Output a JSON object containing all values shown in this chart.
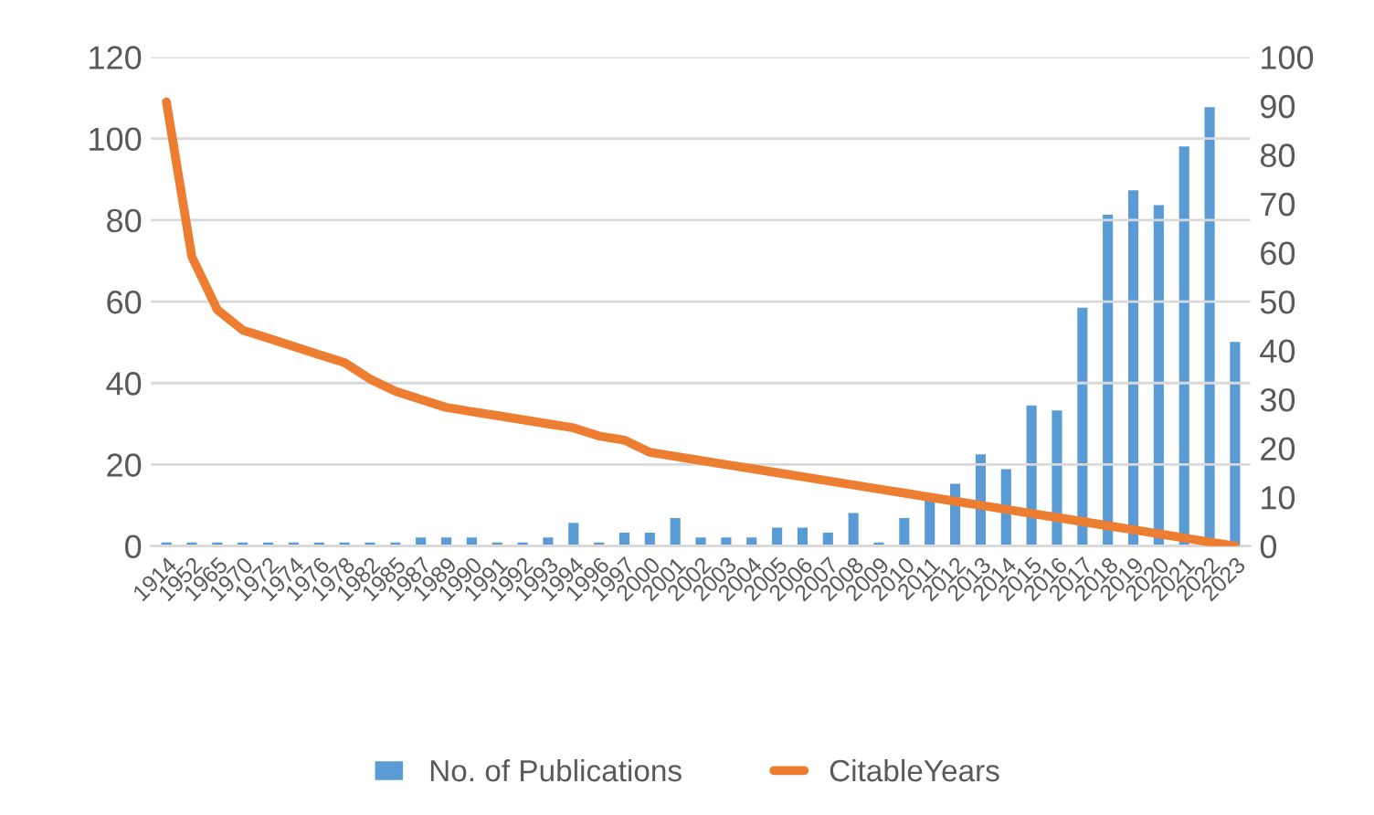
{
  "chart_data": {
    "type": "bar",
    "categories": [
      "1914",
      "1952",
      "1965",
      "1970",
      "1972",
      "1974",
      "1976",
      "1978",
      "1982",
      "1985",
      "1987",
      "1989",
      "1990",
      "1991",
      "1992",
      "1993",
      "1994",
      "1996",
      "1997",
      "2000",
      "2001",
      "2002",
      "2003",
      "2004",
      "2005",
      "2006",
      "2007",
      "2008",
      "2009",
      "2010",
      "2011",
      "2012",
      "2013",
      "2014",
      "2015",
      "2016",
      "2017",
      "2018",
      "2019",
      "2020",
      "2021",
      "2022",
      "2023"
    ],
    "series": [
      {
        "name": "No. of Publications",
        "axis": "y2",
        "color": "#5b9bd5",
        "values": [
          1,
          1,
          1,
          1,
          1,
          1,
          1,
          1,
          1,
          1,
          2,
          2,
          2,
          1,
          1,
          2,
          5,
          1,
          3,
          3,
          6,
          2,
          2,
          2,
          4,
          4,
          3,
          7,
          1,
          6,
          10,
          13,
          19,
          16,
          29,
          28,
          49,
          68,
          73,
          70,
          82,
          90,
          42
        ]
      },
      {
        "name": "CitableYears",
        "type": "line",
        "color": "#ed7d31",
        "values": [
          109,
          71,
          58,
          53,
          51,
          49,
          47,
          45,
          41,
          38,
          36,
          34,
          33,
          32,
          31,
          30,
          29,
          27,
          26,
          23,
          22,
          21,
          20,
          19,
          18,
          17,
          16,
          15,
          14,
          13,
          12,
          11,
          10,
          9,
          8,
          7,
          6,
          5,
          4,
          3,
          2,
          1,
          0
        ]
      }
    ],
    "ylim": [
      0,
      120
    ],
    "yticks": [
      0,
      20,
      40,
      60,
      80,
      100,
      120
    ],
    "y2lim": [
      0,
      100
    ],
    "y2ticks": [
      0,
      10,
      20,
      30,
      40,
      50,
      60,
      70,
      80,
      90,
      100
    ],
    "grid": "y",
    "legend": "bottom"
  }
}
